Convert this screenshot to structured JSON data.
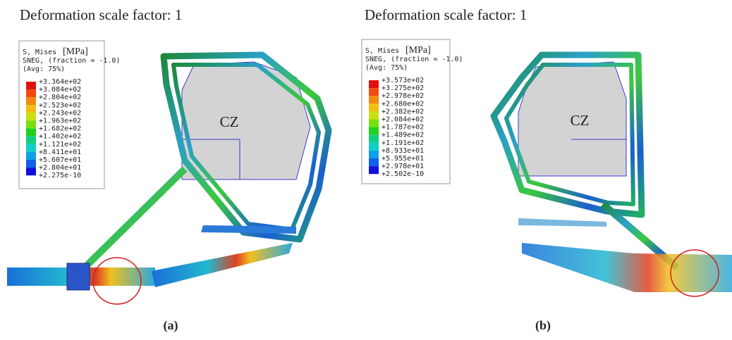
{
  "panels": [
    {
      "title": "Deformation scale factor: 1",
      "legend": {
        "quantity": "S, Mises",
        "unit": "[MPa]",
        "line2": "SNEG, (fraction = -1.0)",
        "line3": "(Avg: 75%)",
        "levels": [
          "+3.364e+02",
          "+3.084e+02",
          "+2.804e+02",
          "+2.523e+02",
          "+2.243e+02",
          "+1.963e+02",
          "+1.682e+02",
          "+1.402e+02",
          "+1.121e+02",
          "+8.411e+01",
          "+5.607e+01",
          "+2.804e+01",
          "+2.275e-10"
        ]
      },
      "zone_label": "CZ",
      "caption": "(a)"
    },
    {
      "title": "Deformation scale factor: 1",
      "legend": {
        "quantity": "S, Mises",
        "unit": "[MPa]",
        "line2": "SNEG, (fraction = -1.0)",
        "line3": "(Avg: 75%)",
        "levels": [
          "+3.573e+02",
          "+3.275e+02",
          "+2.978e+02",
          "+2.680e+02",
          "+2.382e+02",
          "+2.084e+02",
          "+1.787e+02",
          "+1.489e+02",
          "+1.191e+02",
          "+8.933e+01",
          "+5.955e+01",
          "+2.978e+01",
          "+2.502e-10"
        ]
      },
      "zone_label": "CZ",
      "caption": "(b)"
    }
  ]
}
